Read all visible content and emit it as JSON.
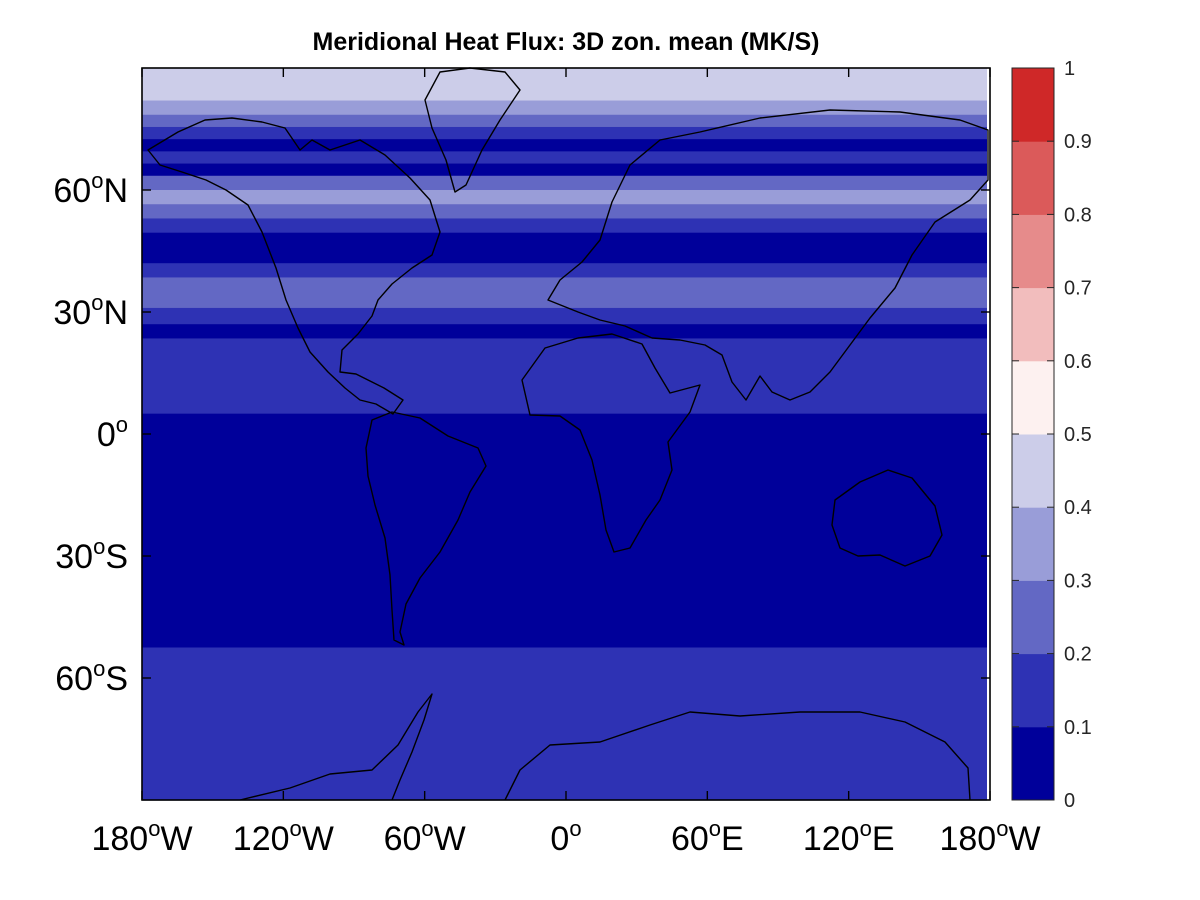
{
  "chart_data": {
    "type": "heatmap",
    "title": "Meridional Heat Flux: 3D zon. mean (MK/S)",
    "projection": "equirectangular",
    "lon_range": [
      -180,
      180
    ],
    "lat_range": [
      -90,
      90
    ],
    "x_ticks": [
      {
        "lon": -180,
        "num": "180",
        "deg": "o",
        "hem": "W"
      },
      {
        "lon": -120,
        "num": "120",
        "deg": "o",
        "hem": "W"
      },
      {
        "lon": -60,
        "num": "60",
        "deg": "o",
        "hem": "W"
      },
      {
        "lon": 0,
        "num": "0",
        "deg": "o",
        "hem": ""
      },
      {
        "lon": 60,
        "num": "60",
        "deg": "o",
        "hem": "E"
      },
      {
        "lon": 120,
        "num": "120",
        "deg": "o",
        "hem": "E"
      },
      {
        "lon": 180,
        "num": "180",
        "deg": "o",
        "hem": "W"
      }
    ],
    "y_ticks": [
      {
        "lat": 60,
        "num": "60",
        "deg": "o",
        "hem": "N"
      },
      {
        "lat": 30,
        "num": "30",
        "deg": "o",
        "hem": "N"
      },
      {
        "lat": 0,
        "num": "0",
        "deg": "o",
        "hem": ""
      },
      {
        "lat": -30,
        "num": "30",
        "deg": "o",
        "hem": "S"
      },
      {
        "lat": -60,
        "num": "60",
        "deg": "o",
        "hem": "S"
      }
    ],
    "colorbar": {
      "range": [
        0,
        1
      ],
      "levels": [
        0,
        0.1,
        0.2,
        0.3,
        0.4,
        0.5,
        0.6,
        0.7,
        0.8,
        0.9,
        1
      ],
      "tick_labels": [
        "0",
        "0.1",
        "0.2",
        "0.3",
        "0.4",
        "0.5",
        "0.6",
        "0.7",
        "0.8",
        "0.9",
        "1"
      ],
      "colors": [
        "#00009a",
        "#2e32b4",
        "#6368c4",
        "#999dd8",
        "#cccde9",
        "#fdf1f0",
        "#f2bdbd",
        "#e68b8b",
        "#db5a5a",
        "#cf2828"
      ]
    },
    "bands": [
      {
        "lat_from": 90,
        "lat_to": 82,
        "value": 0.45
      },
      {
        "lat_from": 82,
        "lat_to": 78.5,
        "value": 0.35
      },
      {
        "lat_from": 78.5,
        "lat_to": 75.5,
        "value": 0.25
      },
      {
        "lat_from": 75.5,
        "lat_to": 72.5,
        "value": 0.15
      },
      {
        "lat_from": 72.5,
        "lat_to": 69.5,
        "value": 0.05
      },
      {
        "lat_from": 69.5,
        "lat_to": 66.5,
        "value": 0.15
      },
      {
        "lat_from": 66.5,
        "lat_to": 63.5,
        "value": 0.05
      },
      {
        "lat_from": 63.5,
        "lat_to": 60,
        "value": 0.25
      },
      {
        "lat_from": 60,
        "lat_to": 56.5,
        "value": 0.35
      },
      {
        "lat_from": 56.5,
        "lat_to": 53,
        "value": 0.25
      },
      {
        "lat_from": 53,
        "lat_to": 49.5,
        "value": 0.15
      },
      {
        "lat_from": 49.5,
        "lat_to": 42,
        "value": 0.05
      },
      {
        "lat_from": 42,
        "lat_to": 38.5,
        "value": 0.15
      },
      {
        "lat_from": 38.5,
        "lat_to": 31,
        "value": 0.25
      },
      {
        "lat_from": 31,
        "lat_to": 27,
        "value": 0.15
      },
      {
        "lat_from": 27,
        "lat_to": 23.5,
        "value": 0.05
      },
      {
        "lat_from": 23.5,
        "lat_to": 5,
        "value": 0.15
      },
      {
        "lat_from": 5,
        "lat_to": -52.5,
        "value": 0.05
      },
      {
        "lat_from": -52.5,
        "lat_to": -90,
        "value": 0.15
      }
    ]
  }
}
